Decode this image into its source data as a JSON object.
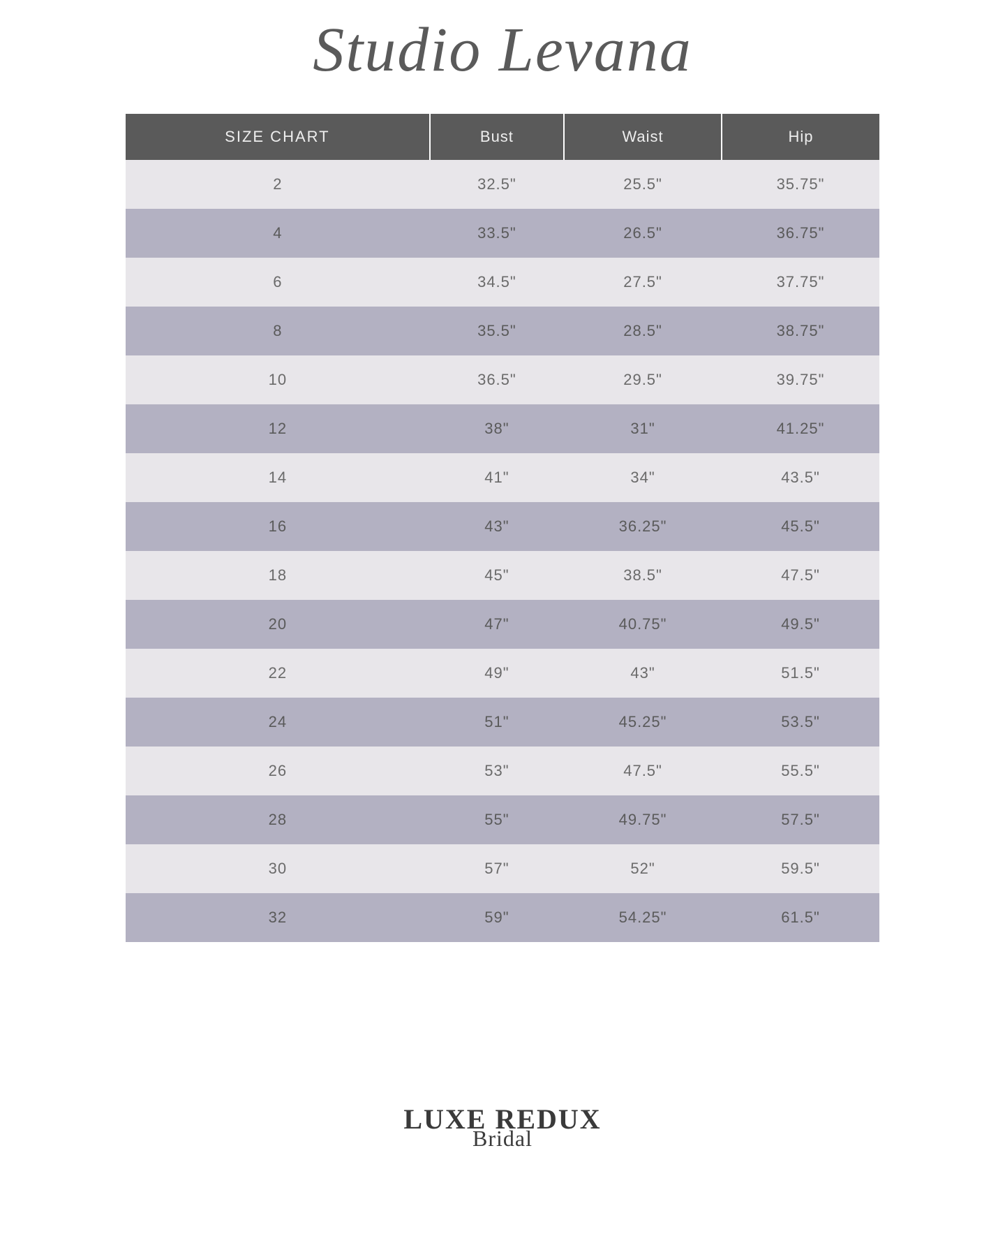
{
  "brand_title": "Studio Levana",
  "columns": [
    "SIZE CHART",
    "Bust",
    "Waist",
    "Hip"
  ],
  "rows": [
    {
      "size": "2",
      "bust": "32.5\"",
      "waist": "25.5\"",
      "hip": "35.75\""
    },
    {
      "size": "4",
      "bust": "33.5\"",
      "waist": "26.5\"",
      "hip": "36.75\""
    },
    {
      "size": "6",
      "bust": "34.5\"",
      "waist": "27.5\"",
      "hip": "37.75\""
    },
    {
      "size": "8",
      "bust": "35.5\"",
      "waist": "28.5\"",
      "hip": "38.75\""
    },
    {
      "size": "10",
      "bust": "36.5\"",
      "waist": "29.5\"",
      "hip": "39.75\""
    },
    {
      "size": "12",
      "bust": "38\"",
      "waist": "31\"",
      "hip": "41.25\""
    },
    {
      "size": "14",
      "bust": "41\"",
      "waist": "34\"",
      "hip": "43.5\""
    },
    {
      "size": "16",
      "bust": "43\"",
      "waist": "36.25\"",
      "hip": "45.5\""
    },
    {
      "size": "18",
      "bust": "45\"",
      "waist": "38.5\"",
      "hip": "47.5\""
    },
    {
      "size": "20",
      "bust": "47\"",
      "waist": "40.75\"",
      "hip": "49.5\""
    },
    {
      "size": "22",
      "bust": "49\"",
      "waist": "43\"",
      "hip": "51.5\""
    },
    {
      "size": "24",
      "bust": "51\"",
      "waist": "45.25\"",
      "hip": "53.5\""
    },
    {
      "size": "26",
      "bust": "53\"",
      "waist": "47.5\"",
      "hip": "55.5\""
    },
    {
      "size": "28",
      "bust": "55\"",
      "waist": "49.75\"",
      "hip": "57.5\""
    },
    {
      "size": "30",
      "bust": "57\"",
      "waist": "52\"",
      "hip": "59.5\""
    },
    {
      "size": "32",
      "bust": "59\"",
      "waist": "54.25\"",
      "hip": "61.5\""
    }
  ],
  "footer_main": "LUXE REDUX",
  "footer_sub": "Bridal",
  "colors": {
    "header_bg": "#5a5a5a",
    "header_text": "#eeeeee",
    "row_light": "#e8e6ea",
    "row_dark": "#b3b1c2",
    "cell_text": "#6a6a6a",
    "title_text": "#5a5a5a",
    "page_bg": "#ffffff"
  },
  "typography": {
    "title_font": "Brush Script MT",
    "title_size_pt": 68,
    "header_size_pt": 16,
    "cell_size_pt": 16,
    "footer_main_size_pt": 30,
    "footer_sub_size_pt": 24
  },
  "table": {
    "type": "table",
    "column_count": 4,
    "row_count": 16,
    "zebra_striping": true,
    "header_divider_color": "#ffffff",
    "column_alignment": [
      "center",
      "center",
      "center",
      "center"
    ]
  }
}
